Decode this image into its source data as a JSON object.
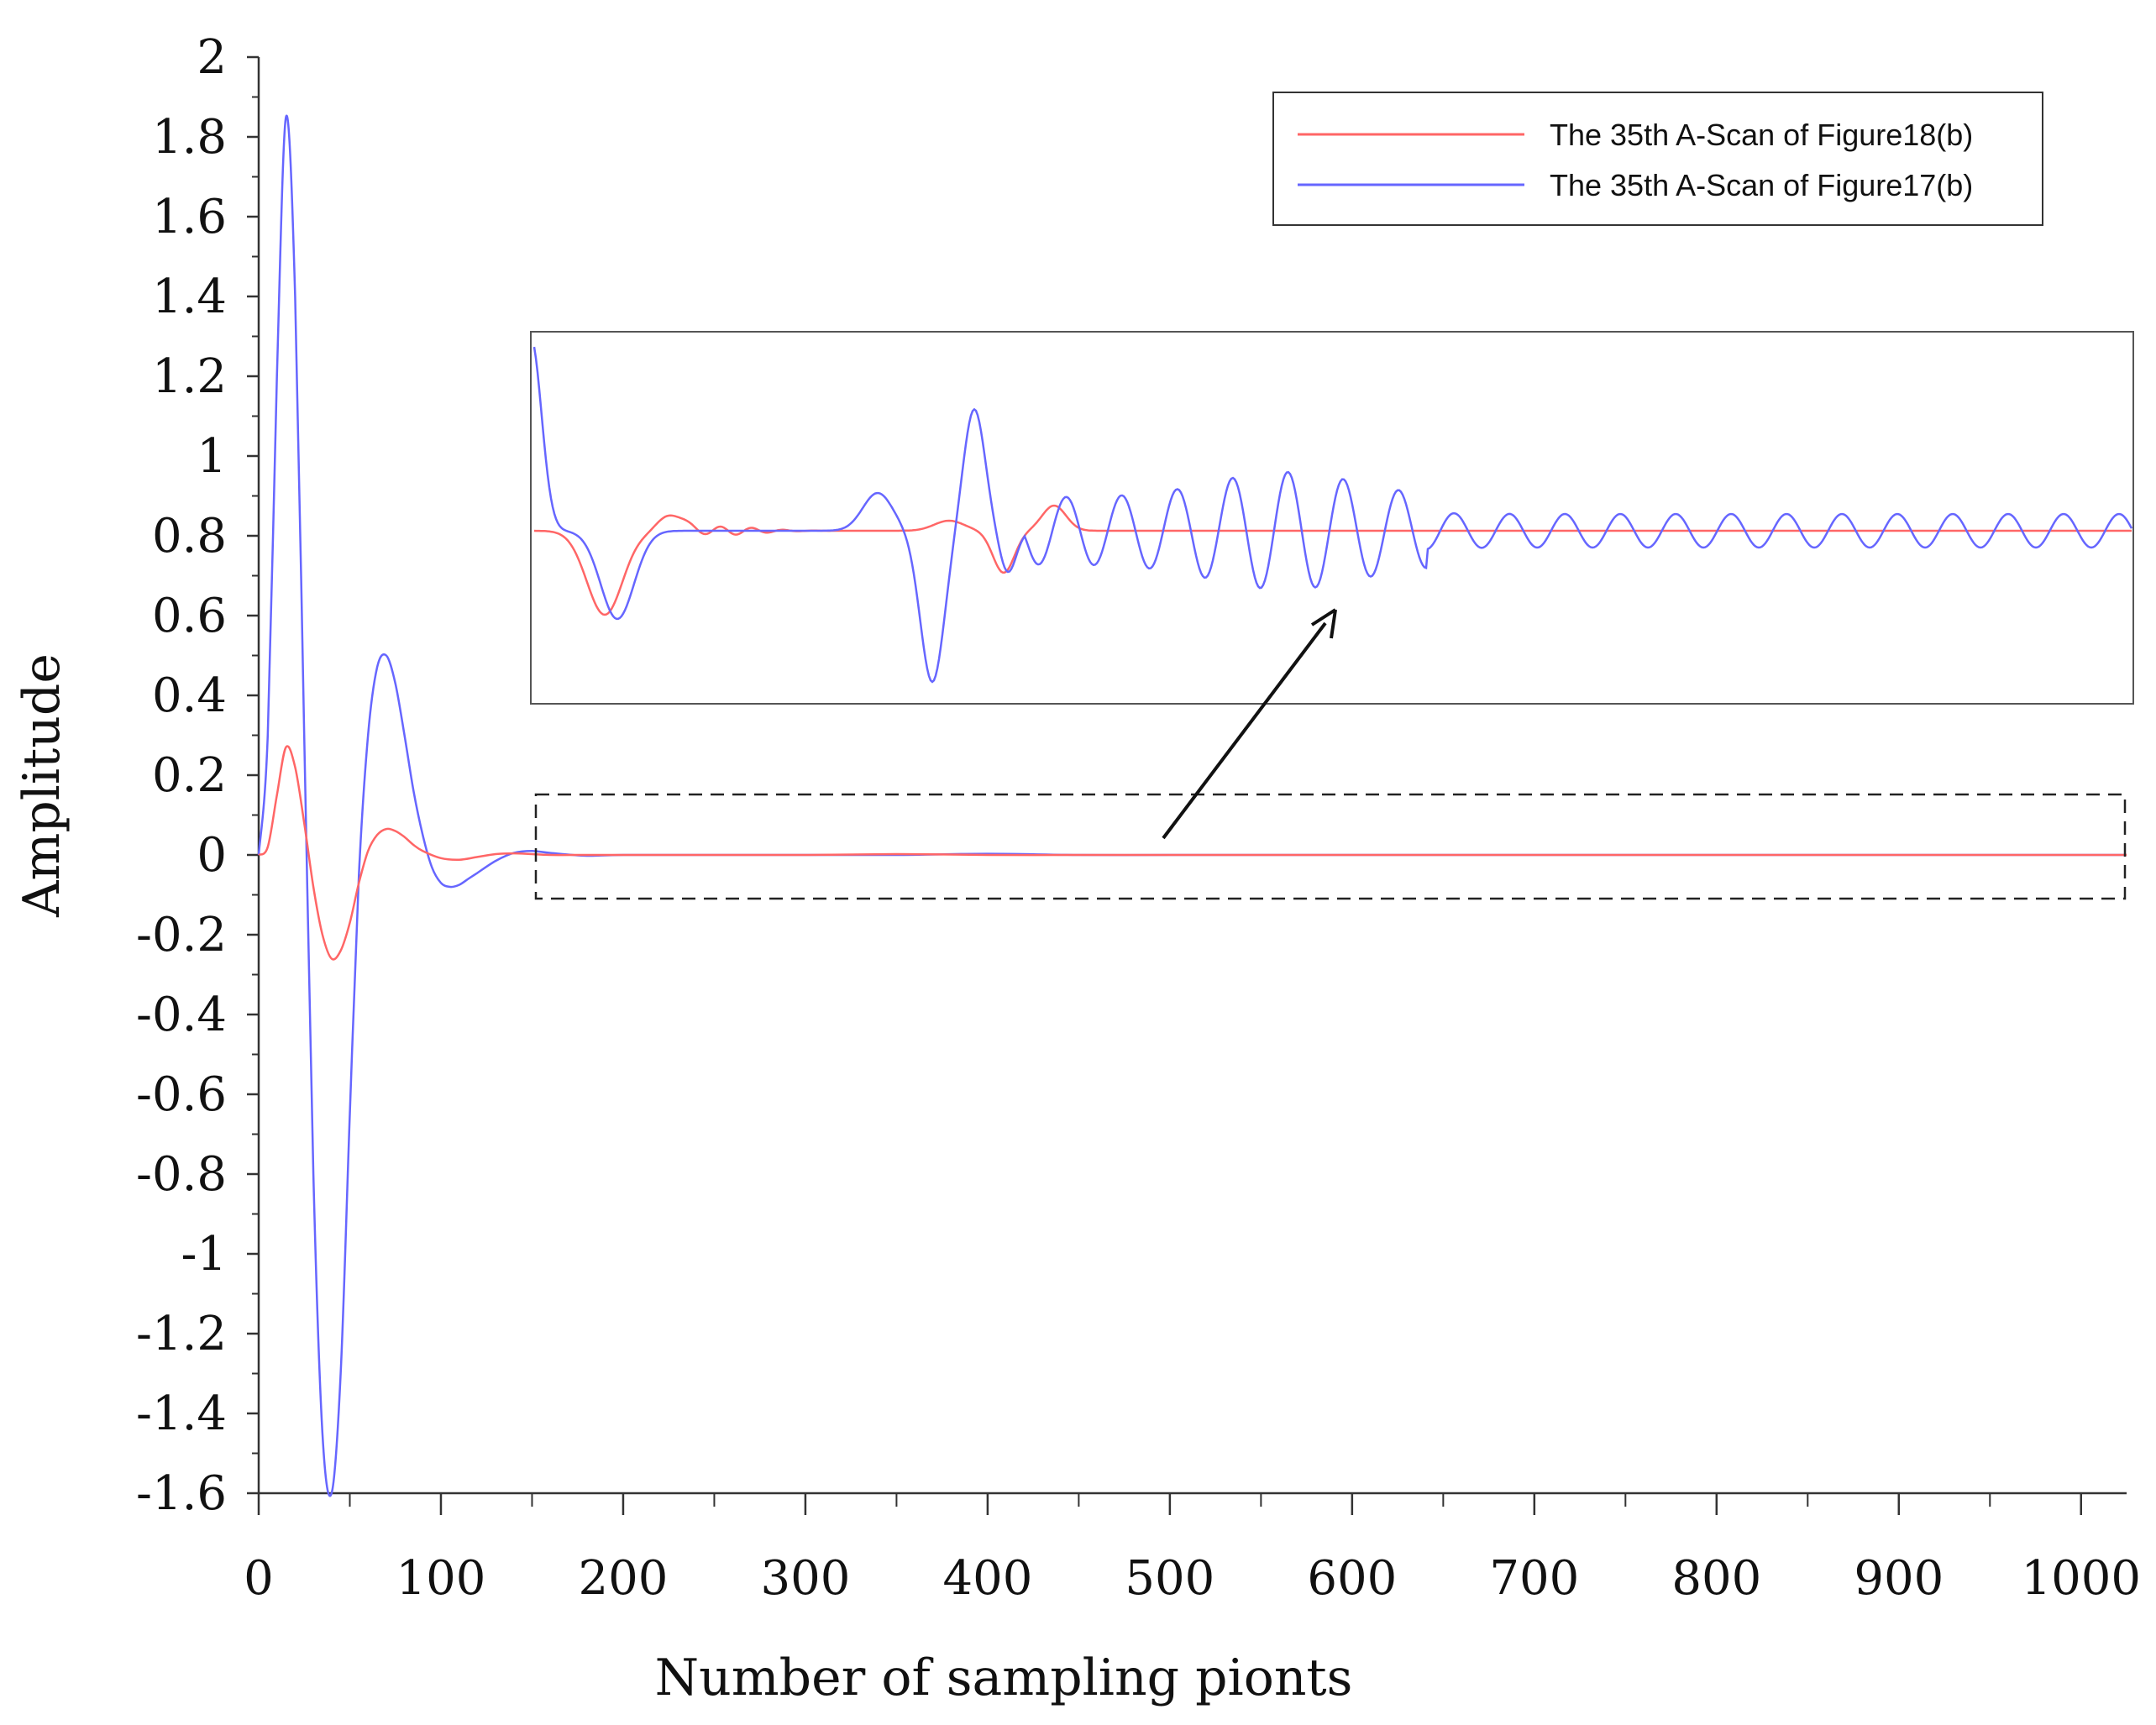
{
  "chart_data": {
    "type": "line",
    "title": "",
    "xlabel": "Number of sampling pionts",
    "ylabel": "Amplitude",
    "xlim": [
      0,
      1025
    ],
    "ylim": [
      -1.6,
      2
    ],
    "x_ticks": [
      "0",
      "100",
      "200",
      "300",
      "400",
      "500",
      "600",
      "700",
      "800",
      "900",
      "1000"
    ],
    "y_ticks": [
      "2",
      "1.8",
      "1.6",
      "1.4",
      "1.2",
      "1",
      "0.8",
      "0.6",
      "0.4",
      "0.2",
      "0",
      "-0.2",
      "-0.4",
      "-0.6",
      "-0.8",
      "-1",
      "-1.2",
      "-1.4",
      "-1.6"
    ],
    "grid": false,
    "legend_position": "top-right",
    "series": [
      {
        "name": "The 35th A-Scan of Figure18(b)",
        "color": "#ff6666",
        "x": [
          0,
          5,
          10,
          15,
          20,
          25,
          30,
          35,
          40,
          45,
          50,
          55,
          60,
          65,
          70,
          75,
          80,
          85,
          90,
          100,
          110,
          120,
          130,
          140,
          150,
          160,
          180,
          200,
          250,
          300,
          350,
          400,
          450,
          500,
          550,
          600,
          650,
          700,
          750,
          800,
          850,
          900,
          950,
          1000,
          1025
        ],
        "y": [
          0,
          0.02,
          0.15,
          0.27,
          0.22,
          0.08,
          -0.08,
          -0.2,
          -0.26,
          -0.24,
          -0.17,
          -0.07,
          0.01,
          0.05,
          0.065,
          0.06,
          0.045,
          0.025,
          0.01,
          -0.008,
          -0.012,
          -0.005,
          0.002,
          0.004,
          0.002,
          0.0,
          0.0,
          0.0,
          0.0,
          0.0,
          0.002,
          0.0,
          0.0,
          0.0,
          0.0,
          0.0,
          0.0,
          0.0,
          0.0,
          0.0,
          0.0,
          0.0,
          0.0,
          0.0,
          0.0
        ]
      },
      {
        "name": "The 35th A-Scan of Figure17(b)",
        "color": "#6666ff",
        "x": [
          0,
          5,
          10,
          15,
          20,
          25,
          30,
          35,
          40,
          45,
          50,
          55,
          60,
          65,
          70,
          75,
          80,
          85,
          90,
          95,
          100,
          105,
          110,
          115,
          120,
          130,
          140,
          150,
          160,
          180,
          200,
          250,
          300,
          350,
          400,
          450,
          500,
          550,
          600,
          650,
          700,
          750,
          800,
          850,
          900,
          950,
          1000,
          1025
        ],
        "y": [
          0,
          0.3,
          1.2,
          1.85,
          1.4,
          0.3,
          -0.8,
          -1.45,
          -1.6,
          -1.3,
          -0.65,
          -0.05,
          0.3,
          0.47,
          0.5,
          0.43,
          0.3,
          0.16,
          0.05,
          -0.03,
          -0.07,
          -0.08,
          -0.075,
          -0.06,
          -0.045,
          -0.015,
          0.005,
          0.01,
          0.005,
          -0.002,
          0.0,
          0.0,
          0.0,
          0.0,
          0.003,
          0.0,
          0.0,
          0.0,
          0.0,
          0.0,
          0.0,
          0.0,
          0.0,
          0.0,
          0.0,
          0.0,
          0.0,
          0.0
        ]
      }
    ],
    "inset": {
      "description_source": "magnified view of the dashed region",
      "x_range": [
        150,
        1025
      ]
    }
  }
}
